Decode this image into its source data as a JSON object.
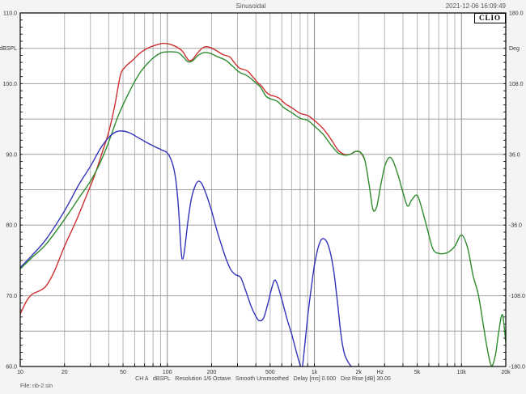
{
  "header": {
    "title": "Sinusoidal",
    "datetime": "2021-12-06 16:09:49",
    "logo_text": "CLIO"
  },
  "footer": {
    "status": "CH A   dBSPL   Resolution 1/6 Octave   Smooth Unsmoothed   Delay [ms] 0.000   Dist Rise [dB] 30.00",
    "file": "File: nb-2.sin"
  },
  "chart_data": {
    "type": "line",
    "title": "Sinusoidal",
    "grid": true,
    "x_axis": {
      "scale": "log",
      "min": 10,
      "max": 20000,
      "unit": "Hz",
      "unit_position_hz": 2800,
      "tick_values": [
        10,
        20,
        50,
        100,
        200,
        500,
        1000,
        2000,
        5000,
        10000,
        20000
      ],
      "tick_labels": [
        "10",
        "20",
        "50",
        "100",
        "200",
        "500",
        "1k",
        "2k",
        "5k",
        "10k",
        "20k"
      ]
    },
    "y_left": {
      "label": "dBSPL",
      "label_value": 105,
      "min": 60,
      "max": 110,
      "major_step": 5,
      "tick_values": [
        110,
        100,
        90,
        80,
        70,
        60
      ],
      "tick_labels": [
        "110.0",
        "100.0",
        "90.0",
        "80.0",
        "70.0",
        "60.0"
      ]
    },
    "y_right": {
      "label": "Deg",
      "label_value": 144,
      "min": -180,
      "max": 180,
      "major_step": 36,
      "tick_values": [
        180,
        108,
        36,
        -36,
        -108,
        -180
      ],
      "tick_labels": [
        "180.0",
        "108.0",
        "36.0",
        "-36.0",
        "-108.0",
        "-180.0"
      ]
    },
    "series": [
      {
        "name": "red",
        "color": "#cc2f2f",
        "points": [
          [
            10,
            67.4
          ],
          [
            11,
            69.2
          ],
          [
            12,
            70.2
          ],
          [
            13.5,
            70.7
          ],
          [
            15,
            71.4
          ],
          [
            17,
            73.4
          ],
          [
            20,
            77
          ],
          [
            24,
            80.6
          ],
          [
            28,
            84
          ],
          [
            32,
            87
          ],
          [
            36,
            90.2
          ],
          [
            40,
            93.2
          ],
          [
            44,
            97
          ],
          [
            48,
            101.2
          ],
          [
            52,
            102.4
          ],
          [
            58,
            103.3
          ],
          [
            65,
            104.3
          ],
          [
            75,
            105.1
          ],
          [
            85,
            105.5
          ],
          [
            95,
            105.7
          ],
          [
            110,
            105.4
          ],
          [
            125,
            104.7
          ],
          [
            133,
            103.9
          ],
          [
            140,
            103.3
          ],
          [
            148,
            103.4
          ],
          [
            160,
            104.3
          ],
          [
            175,
            105.1
          ],
          [
            190,
            105.2
          ],
          [
            210,
            104.8
          ],
          [
            240,
            104.1
          ],
          [
            265,
            103.8
          ],
          [
            285,
            103
          ],
          [
            310,
            102.2
          ],
          [
            350,
            101.8
          ],
          [
            380,
            101
          ],
          [
            410,
            100.2
          ],
          [
            440,
            99.6
          ],
          [
            470,
            98.8
          ],
          [
            500,
            98.4
          ],
          [
            540,
            98.2
          ],
          [
            580,
            97.9
          ],
          [
            630,
            97.2
          ],
          [
            700,
            96.6
          ],
          [
            800,
            95.8
          ],
          [
            900,
            95.5
          ],
          [
            1000,
            94.8
          ],
          [
            1150,
            93.6
          ],
          [
            1300,
            92.1
          ],
          [
            1450,
            90.6
          ],
          [
            1600,
            90
          ],
          [
            1750,
            90
          ],
          [
            1900,
            90.4
          ],
          [
            2050,
            90.3
          ],
          [
            2200,
            89.3
          ]
        ]
      },
      {
        "name": "green",
        "color": "#2e8b2e",
        "points": [
          [
            10,
            73.8
          ],
          [
            12,
            75.4
          ],
          [
            15,
            77.3
          ],
          [
            20,
            80.8
          ],
          [
            25,
            83.8
          ],
          [
            30,
            86.2
          ],
          [
            34,
            88.3
          ],
          [
            38,
            90.6
          ],
          [
            42,
            93
          ],
          [
            46,
            95.3
          ],
          [
            50,
            97
          ],
          [
            55,
            98.8
          ],
          [
            60,
            100.3
          ],
          [
            66,
            101.7
          ],
          [
            73,
            102.8
          ],
          [
            82,
            103.8
          ],
          [
            92,
            104.4
          ],
          [
            105,
            104.5
          ],
          [
            118,
            104.4
          ],
          [
            128,
            103.8
          ],
          [
            138,
            103.1
          ],
          [
            148,
            103.2
          ],
          [
            162,
            104
          ],
          [
            178,
            104.4
          ],
          [
            195,
            104.3
          ],
          [
            220,
            103.8
          ],
          [
            250,
            103.3
          ],
          [
            280,
            102.4
          ],
          [
            310,
            101.6
          ],
          [
            350,
            101.1
          ],
          [
            390,
            100.3
          ],
          [
            430,
            99.5
          ],
          [
            470,
            98.2
          ],
          [
            510,
            97.8
          ],
          [
            560,
            97.5
          ],
          [
            620,
            96.6
          ],
          [
            700,
            95.9
          ],
          [
            800,
            95.1
          ],
          [
            900,
            94.8
          ],
          [
            1000,
            94
          ],
          [
            1150,
            92.8
          ],
          [
            1300,
            91.3
          ],
          [
            1450,
            90.2
          ],
          [
            1600,
            89.9
          ],
          [
            1750,
            90
          ],
          [
            1900,
            90.4
          ],
          [
            2050,
            90.3
          ],
          [
            2200,
            89.2
          ],
          [
            2350,
            85.8
          ],
          [
            2500,
            82.2
          ],
          [
            2650,
            82.6
          ],
          [
            2800,
            85.2
          ],
          [
            3000,
            88.2
          ],
          [
            3200,
            89.5
          ],
          [
            3400,
            89.2
          ],
          [
            3700,
            87.1
          ],
          [
            4000,
            84.6
          ],
          [
            4300,
            82.7
          ],
          [
            4600,
            83.6
          ],
          [
            5000,
            84.2
          ],
          [
            5400,
            82.2
          ],
          [
            5900,
            79.2
          ],
          [
            6400,
            76.6
          ],
          [
            7000,
            76
          ],
          [
            8000,
            76.1
          ],
          [
            9000,
            77
          ],
          [
            10000,
            78.6
          ],
          [
            11000,
            76.8
          ],
          [
            12000,
            72.8
          ],
          [
            13000,
            70.2
          ],
          [
            14000,
            66.2
          ],
          [
            15000,
            62.4
          ],
          [
            16000,
            60.1
          ],
          [
            17000,
            61.6
          ],
          [
            18000,
            65.2
          ],
          [
            19000,
            67.3
          ],
          [
            20000,
            63.4
          ]
        ]
      },
      {
        "name": "blue",
        "color": "#3333bb",
        "points": [
          [
            10,
            74
          ],
          [
            12,
            75.7
          ],
          [
            15,
            78
          ],
          [
            20,
            82
          ],
          [
            25,
            85.7
          ],
          [
            30,
            88.3
          ],
          [
            35,
            90.8
          ],
          [
            40,
            92.4
          ],
          [
            45,
            93.2
          ],
          [
            50,
            93.3
          ],
          [
            56,
            93
          ],
          [
            63,
            92.4
          ],
          [
            72,
            91.7
          ],
          [
            82,
            91.1
          ],
          [
            92,
            90.6
          ],
          [
            100,
            90.2
          ],
          [
            108,
            88.8
          ],
          [
            114,
            86.5
          ],
          [
            119,
            82.5
          ],
          [
            124,
            76.5
          ],
          [
            127,
            75.2
          ],
          [
            131,
            76.5
          ],
          [
            138,
            80.5
          ],
          [
            146,
            83.8
          ],
          [
            155,
            85.6
          ],
          [
            163,
            86.2
          ],
          [
            172,
            85.8
          ],
          [
            185,
            84.2
          ],
          [
            200,
            82
          ],
          [
            215,
            79.6
          ],
          [
            230,
            77.6
          ],
          [
            250,
            75.3
          ],
          [
            270,
            73.7
          ],
          [
            290,
            73
          ],
          [
            315,
            72.6
          ],
          [
            340,
            70.8
          ],
          [
            370,
            68.6
          ],
          [
            395,
            67.3
          ],
          [
            420,
            66.5
          ],
          [
            450,
            66.8
          ],
          [
            480,
            68.7
          ],
          [
            510,
            70.9
          ],
          [
            535,
            72.2
          ],
          [
            560,
            71.6
          ],
          [
            600,
            69.5
          ],
          [
            650,
            66.8
          ],
          [
            700,
            64.6
          ],
          [
            760,
            61.8
          ],
          [
            800,
            60.2
          ],
          [
            815,
            59.6
          ],
          [
            830,
            60
          ],
          [
            860,
            63
          ],
          [
            900,
            67
          ],
          [
            950,
            71
          ],
          [
            1000,
            74.3
          ],
          [
            1060,
            76.8
          ],
          [
            1120,
            78
          ],
          [
            1200,
            77.8
          ],
          [
            1280,
            76.2
          ],
          [
            1360,
            73.2
          ],
          [
            1440,
            68.8
          ],
          [
            1520,
            64.3
          ],
          [
            1600,
            61.8
          ],
          [
            1700,
            60.6
          ],
          [
            1780,
            60
          ]
        ]
      }
    ]
  }
}
